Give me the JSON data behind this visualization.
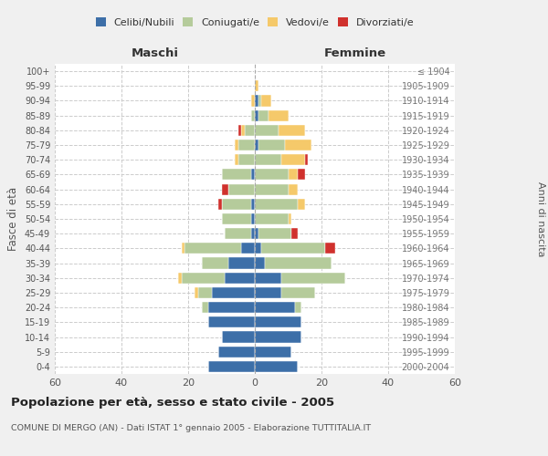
{
  "age_groups": [
    "0-4",
    "5-9",
    "10-14",
    "15-19",
    "20-24",
    "25-29",
    "30-34",
    "35-39",
    "40-44",
    "45-49",
    "50-54",
    "55-59",
    "60-64",
    "65-69",
    "70-74",
    "75-79",
    "80-84",
    "85-89",
    "90-94",
    "95-99",
    "100+"
  ],
  "birth_years": [
    "2000-2004",
    "1995-1999",
    "1990-1994",
    "1985-1989",
    "1980-1984",
    "1975-1979",
    "1970-1974",
    "1965-1969",
    "1960-1964",
    "1955-1959",
    "1950-1954",
    "1945-1949",
    "1940-1944",
    "1935-1939",
    "1930-1934",
    "1925-1929",
    "1920-1924",
    "1915-1919",
    "1910-1914",
    "1905-1909",
    "≤ 1904"
  ],
  "colors": {
    "celibi": "#3d6fa8",
    "coniugati": "#b5cb9b",
    "vedovi": "#f5c96a",
    "divorziati": "#d0312d"
  },
  "maschi": {
    "celibi": [
      14,
      11,
      10,
      14,
      14,
      13,
      9,
      8,
      4,
      1,
      1,
      1,
      0,
      1,
      0,
      0,
      0,
      0,
      0,
      0,
      0
    ],
    "coniugati": [
      0,
      0,
      0,
      0,
      2,
      4,
      13,
      8,
      17,
      8,
      9,
      9,
      8,
      9,
      5,
      5,
      3,
      1,
      0,
      0,
      0
    ],
    "vedovi": [
      0,
      0,
      0,
      0,
      0,
      1,
      1,
      0,
      1,
      0,
      0,
      0,
      0,
      0,
      1,
      1,
      1,
      0,
      1,
      0,
      0
    ],
    "divorziati": [
      0,
      0,
      0,
      0,
      0,
      0,
      0,
      0,
      0,
      0,
      0,
      1,
      2,
      0,
      0,
      0,
      1,
      0,
      0,
      0,
      0
    ]
  },
  "femmine": {
    "celibi": [
      13,
      11,
      14,
      14,
      12,
      8,
      8,
      3,
      2,
      1,
      0,
      0,
      0,
      0,
      0,
      1,
      0,
      1,
      1,
      0,
      0
    ],
    "coniugati": [
      0,
      0,
      0,
      0,
      2,
      10,
      19,
      20,
      19,
      10,
      10,
      13,
      10,
      10,
      8,
      8,
      7,
      3,
      1,
      0,
      0
    ],
    "vedovi": [
      0,
      0,
      0,
      0,
      0,
      0,
      0,
      0,
      0,
      0,
      1,
      2,
      3,
      3,
      7,
      8,
      8,
      6,
      3,
      1,
      0
    ],
    "divorziati": [
      0,
      0,
      0,
      0,
      0,
      0,
      0,
      0,
      3,
      2,
      0,
      0,
      0,
      2,
      1,
      0,
      0,
      0,
      0,
      0,
      0
    ]
  },
  "title": "Popolazione per età, sesso e stato civile - 2005",
  "subtitle": "COMUNE DI MERGO (AN) - Dati ISTAT 1° gennaio 2005 - Elaborazione TUTTITALIA.IT",
  "xlabel_left": "Maschi",
  "xlabel_right": "Femmine",
  "ylabel_left": "Fasce di età",
  "ylabel_right": "Anni di nascita",
  "xlim": 60,
  "legend_labels": [
    "Celibi/Nubili",
    "Coniugati/e",
    "Vedovi/e",
    "Divorziati/e"
  ],
  "bg_color": "#f0f0f0",
  "plot_bg": "#ffffff",
  "grid_color": "#cccccc"
}
